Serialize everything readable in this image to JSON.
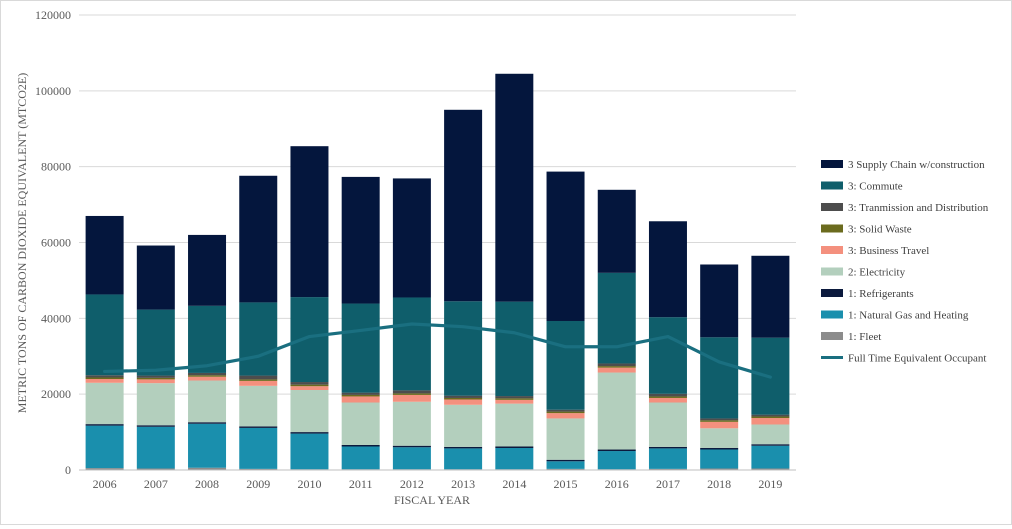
{
  "chart_data": {
    "type": "bar",
    "stacked": true,
    "title": "",
    "xlabel": "FISCAL YEAR",
    "ylabel": "METRIC TONS OF CARBON DIOXIDE EQUIVALENT (MTCO2E)",
    "ylim": [
      0,
      120000
    ],
    "yticks": [
      0,
      20000,
      40000,
      60000,
      80000,
      100000,
      120000
    ],
    "grid": true,
    "legend_position": "right",
    "categories": [
      "2006",
      "2007",
      "2008",
      "2009",
      "2010",
      "2011",
      "2012",
      "2013",
      "2014",
      "2015",
      "2016",
      "2017",
      "2018",
      "2019"
    ],
    "series": [
      {
        "name": "1:  Fleet",
        "color": "#8c8c8c",
        "values": [
          500,
          400,
          600,
          300,
          200,
          200,
          200,
          200,
          200,
          300,
          200,
          300,
          400,
          400
        ]
      },
      {
        "name": "1: Natural Gas and Heating",
        "color": "#1a8fad",
        "values": [
          11200,
          11000,
          11600,
          10800,
          9400,
          6000,
          5800,
          5500,
          5600,
          2000,
          4800,
          5400,
          5000,
          6000
        ]
      },
      {
        "name": "1: Refrigerants",
        "color": "#0b1a3d",
        "values": [
          400,
          400,
          400,
          400,
          400,
          400,
          400,
          400,
          400,
          400,
          400,
          400,
          400,
          400
        ]
      },
      {
        "name": "2: Electricity",
        "color": "#b3cfbd",
        "values": [
          10900,
          11100,
          11000,
          10700,
          11100,
          11200,
          11600,
          11100,
          11300,
          10900,
          20300,
          11700,
          5200,
          5200
        ]
      },
      {
        "name": "3: Business Travel",
        "color": "#f4907e",
        "values": [
          1000,
          1000,
          1000,
          1300,
          1000,
          1600,
          1800,
          1400,
          1000,
          1400,
          1300,
          1200,
          1700,
          1700
        ]
      },
      {
        "name": "3: Solid Waste",
        "color": "#6b6b1e",
        "values": [
          400,
          400,
          400,
          400,
          400,
          400,
          400,
          400,
          400,
          400,
          400,
          400,
          400,
          400
        ]
      },
      {
        "name": "3: Tranmission and Distribution",
        "color": "#4d4d4d",
        "values": [
          600,
          600,
          600,
          1000,
          700,
          600,
          800,
          600,
          600,
          500,
          700,
          700,
          500,
          500
        ]
      },
      {
        "name": "3: Commute",
        "color": "#0f5e6b",
        "values": [
          21300,
          17400,
          17700,
          19300,
          22400,
          23500,
          24500,
          24900,
          24900,
          23400,
          23900,
          20200,
          21400,
          20300
        ]
      },
      {
        "name": "3 Supply Chain w/construction",
        "color": "#04163d",
        "values": [
          20700,
          16900,
          18700,
          33400,
          39800,
          33400,
          31400,
          50500,
          60100,
          39400,
          21900,
          25300,
          19200,
          21600
        ]
      }
    ],
    "line_series": {
      "name": "Full Time Equivalent Occupant",
      "color": "#1a6f80",
      "values": [
        26000,
        26300,
        27500,
        30000,
        35200,
        36800,
        38500,
        37800,
        36200,
        32500,
        32500,
        35200,
        28500,
        24500
      ]
    },
    "legend_order": [
      "3 Supply Chain w/construction",
      "3: Commute",
      "3: Tranmission and Distribution",
      "3: Solid Waste",
      "3: Business Travel",
      "2: Electricity",
      "1: Refrigerants",
      "1: Natural Gas and Heating",
      "1:  Fleet",
      "Full Time Equivalent Occupant"
    ]
  }
}
